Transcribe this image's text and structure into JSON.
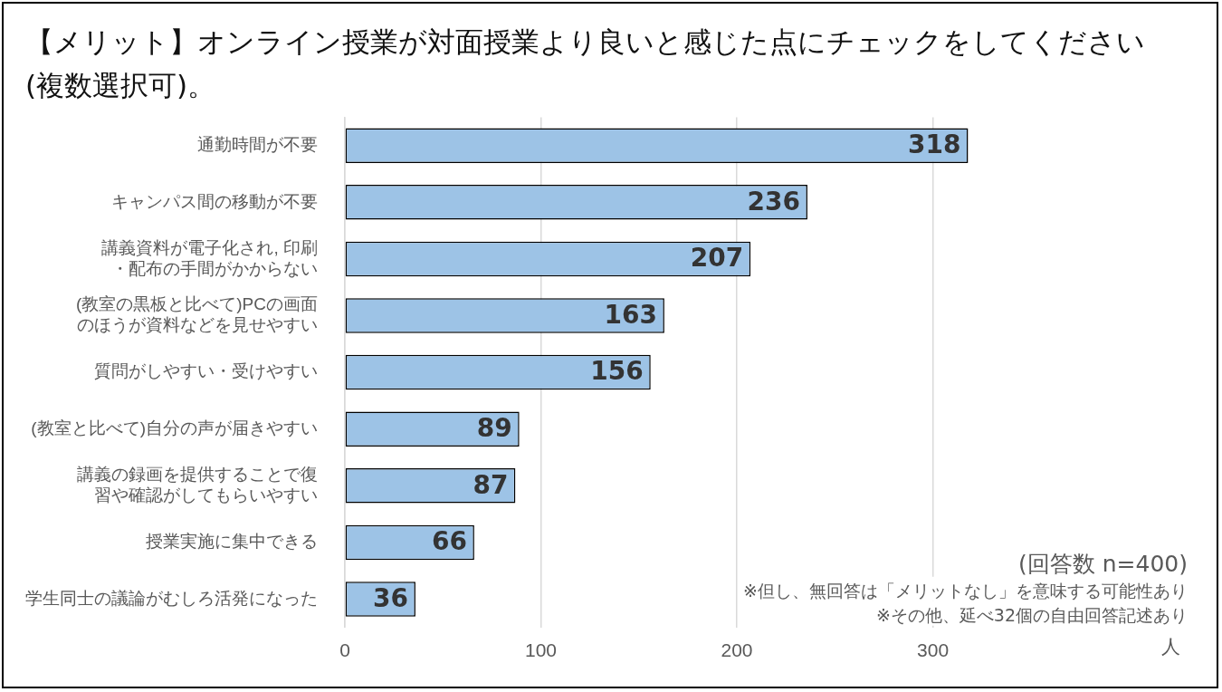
{
  "chart_data": {
    "type": "bar",
    "orientation": "horizontal",
    "title": "【メリット】オンライン授業が対面授業より良いと感じた点にチェックをしてください(複数選択可)。",
    "categories": [
      "通勤時間が不要",
      "キャンパス間の移動が不要",
      "講義資料が電子化され, 印刷・配布の手間がかからない",
      "(教室の黒板と比べて)PCの画面のほうが資料などを見せやすい",
      "質問がしやすい・受けやすい",
      "(教室と比べて)自分の声が届きやすい",
      "講義の録画を提供することで復習や確認がしてもらいやすい",
      "授業実施に集中できる",
      "学生同士の議論がむしろ活発になった"
    ],
    "values": [
      318,
      236,
      207,
      163,
      156,
      89,
      87,
      66,
      36
    ],
    "color": "#9dc3e6",
    "xlim": [
      0,
      430
    ],
    "xticks": [
      0,
      100,
      200,
      300
    ],
    "xlabel": "人",
    "grid": "x",
    "data_labels": true,
    "annotations": [
      "(回答数 n=400)",
      "※但し、無回答は「メリットなし」を意味する可能性あり",
      "※その他、延べ32個の自由回答記述あり"
    ]
  }
}
